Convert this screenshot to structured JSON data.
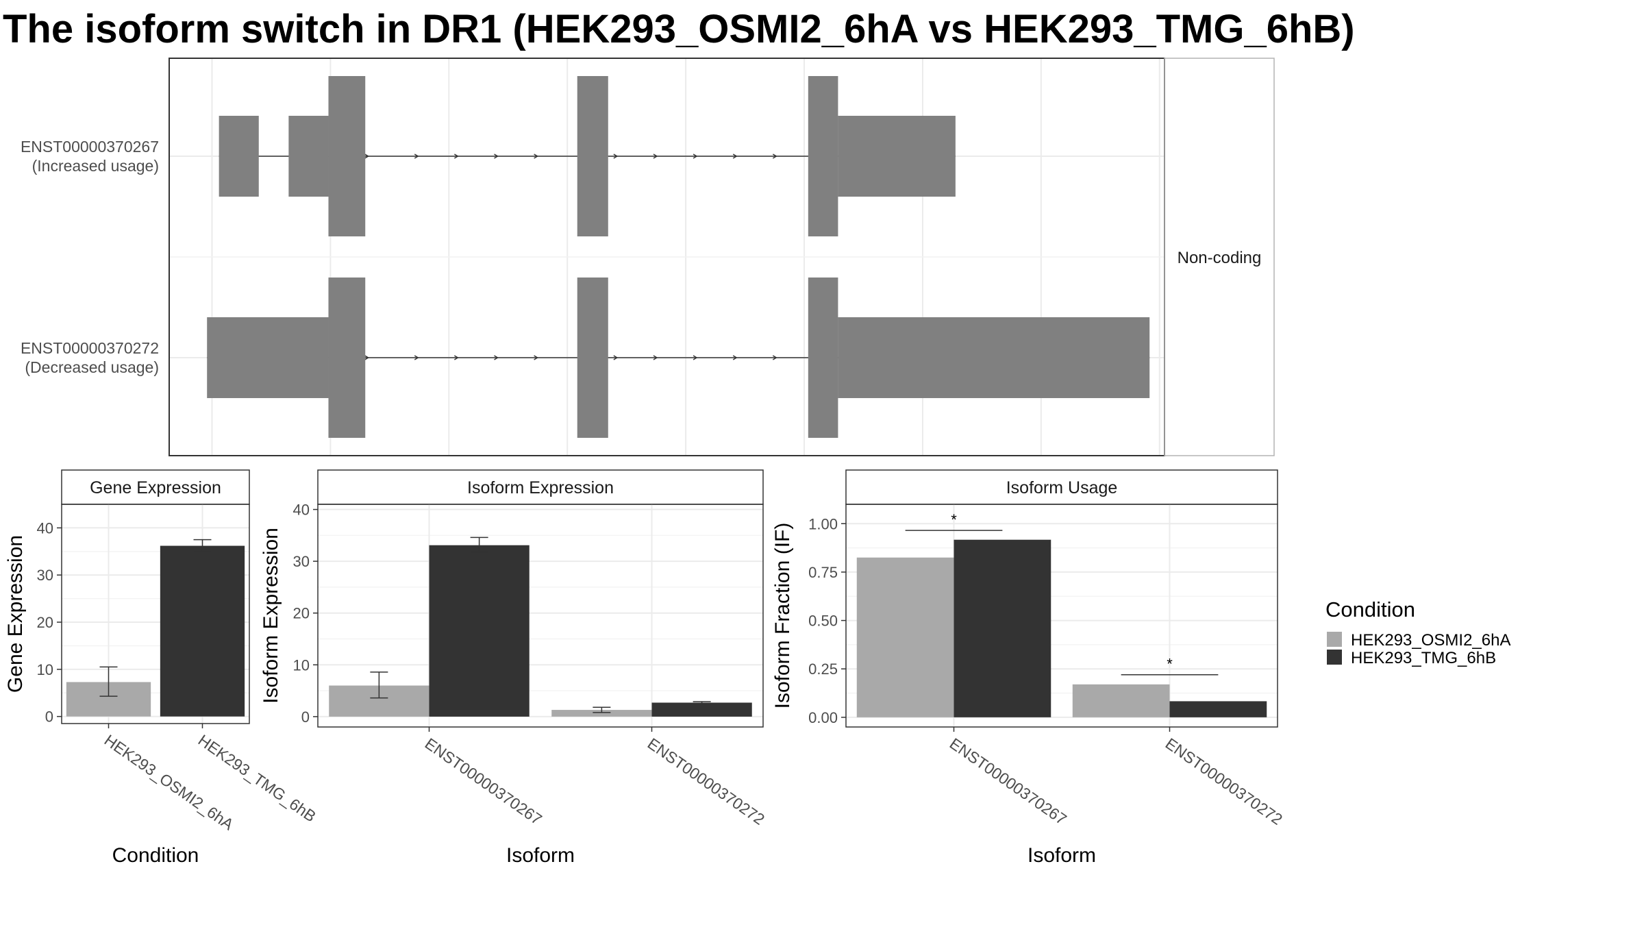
{
  "title": "The isoform switch in DR1 (HEK293_OSMI2_6hA vs HEK293_TMG_6hB)",
  "colors": {
    "condition_a": "#a9a9a9",
    "condition_b": "#333333",
    "exon": "#808080",
    "grid": "#ebebeb",
    "panel_border": "#333333"
  },
  "chart_data": [
    {
      "type": "gene-structure",
      "facet_label": "Non-coding",
      "transcripts": [
        {
          "id": "ENST00000370267",
          "label_line1": "ENST00000370267",
          "label_line2": "(Increased usage)",
          "exons": [
            {
              "start": 0.05,
              "end": 0.09,
              "coding": false
            },
            {
              "start": 0.12,
              "end": 0.16,
              "coding": false
            },
            {
              "start": 0.16,
              "end": 0.197,
              "coding": true
            },
            {
              "start": 0.41,
              "end": 0.441,
              "coding": true
            },
            {
              "start": 0.642,
              "end": 0.672,
              "coding": true
            },
            {
              "start": 0.672,
              "end": 0.79,
              "coding": false
            }
          ],
          "intron_arrows": [
            0.2,
            0.25,
            0.29,
            0.33,
            0.37,
            0.45,
            0.49,
            0.53,
            0.57,
            0.61
          ]
        },
        {
          "id": "ENST00000370272",
          "label_line1": "ENST00000370272",
          "label_line2": "(Decreased usage)",
          "exons": [
            {
              "start": 0.038,
              "end": 0.16,
              "coding": false
            },
            {
              "start": 0.16,
              "end": 0.197,
              "coding": true
            },
            {
              "start": 0.41,
              "end": 0.441,
              "coding": true
            },
            {
              "start": 0.642,
              "end": 0.672,
              "coding": true
            },
            {
              "start": 0.672,
              "end": 0.985,
              "coding": false
            }
          ],
          "intron_arrows": [
            0.2,
            0.25,
            0.29,
            0.33,
            0.37,
            0.45,
            0.49,
            0.53,
            0.57,
            0.61
          ]
        }
      ]
    },
    {
      "type": "bar",
      "panel_title": "Gene Expression",
      "xlabel": "Condition",
      "ylabel": "Gene Expression",
      "ylim": [
        -1.5,
        45
      ],
      "yticks": [
        0,
        10,
        20,
        30,
        40
      ],
      "categories": [
        "HEK293_OSMI2_6hA",
        "HEK293_TMG_6hB"
      ],
      "values": [
        7.3,
        36.2
      ],
      "error_low": [
        4.3,
        35.0
      ],
      "error_high": [
        10.5,
        37.5
      ],
      "bar_colors": [
        "#a9a9a9",
        "#333333"
      ]
    },
    {
      "type": "bar",
      "panel_title": "Isoform Expression",
      "xlabel": "Isoform",
      "ylabel": "Isoform Expression",
      "ylim": [
        -2,
        41
      ],
      "yticks": [
        0,
        10,
        20,
        30,
        40
      ],
      "categories": [
        "ENST00000370267",
        "ENST00000370272"
      ],
      "series": [
        {
          "name": "HEK293_OSMI2_6hA",
          "values": [
            6.0,
            1.3
          ],
          "error_low": [
            3.6,
            0.8
          ],
          "error_high": [
            8.6,
            1.8
          ]
        },
        {
          "name": "HEK293_TMG_6hB",
          "values": [
            33.1,
            2.7
          ],
          "error_low": [
            31.8,
            2.55
          ],
          "error_high": [
            34.6,
            2.9
          ]
        }
      ]
    },
    {
      "type": "bar",
      "panel_title": "Isoform Usage",
      "xlabel": "Isoform",
      "ylabel": "Isoform Fraction (IF)",
      "ylim": [
        -0.05,
        1.1
      ],
      "yticks": [
        0.0,
        0.25,
        0.5,
        0.75,
        1.0
      ],
      "ytick_labels": [
        "0.00",
        "0.25",
        "0.50",
        "0.75",
        "1.00"
      ],
      "categories": [
        "ENST00000370267",
        "ENST00000370272"
      ],
      "series": [
        {
          "name": "HEK293_OSMI2_6hA",
          "values": [
            0.825,
            0.17
          ]
        },
        {
          "name": "HEK293_TMG_6hB",
          "values": [
            0.917,
            0.083
          ]
        }
      ],
      "significance": [
        {
          "category": "ENST00000370267",
          "line_y": 0.965,
          "label": "*"
        },
        {
          "category": "ENST00000370272",
          "line_y": 0.22,
          "label": "*"
        }
      ]
    }
  ],
  "legend": {
    "title": "Condition",
    "items": [
      {
        "label": "HEK293_OSMI2_6hA",
        "color": "#a9a9a9"
      },
      {
        "label": "HEK293_TMG_6hB",
        "color": "#333333"
      }
    ]
  }
}
